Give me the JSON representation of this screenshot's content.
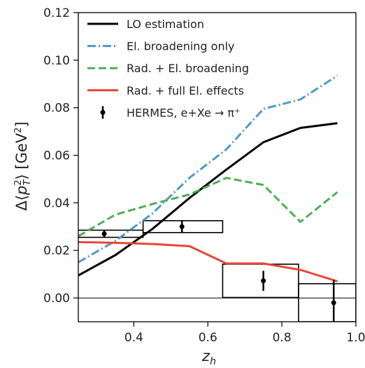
{
  "chart_data": {
    "type": "line",
    "xlabel": "z_h",
    "ylabel": "Δ⟨p_T^2⟩ [GeV^2]",
    "xlim": [
      0.25,
      1.0
    ],
    "ylim": [
      -0.01,
      0.12
    ],
    "x_ticks": [
      "0.4",
      "0.6",
      "0.8",
      "1.0"
    ],
    "y_ticks": [
      "0.00",
      "0.02",
      "0.04",
      "0.06",
      "0.08",
      "0.10",
      "0.12"
    ],
    "grid": false,
    "legend_position": "top-left",
    "series": [
      {
        "name": "LO estimation",
        "color": "#000000",
        "style": "solid",
        "x": [
          0.25,
          0.35,
          0.45,
          0.55,
          0.65,
          0.75,
          0.85,
          0.95
        ],
        "y": [
          0.0095,
          0.018,
          0.029,
          0.042,
          0.054,
          0.0655,
          0.0715,
          0.0735
        ]
      },
      {
        "name": "El. broadening only",
        "color": "#4c9ac7",
        "style": "dashdot",
        "x": [
          0.25,
          0.35,
          0.45,
          0.55,
          0.65,
          0.75,
          0.85,
          0.95
        ],
        "y": [
          0.015,
          0.024,
          0.0355,
          0.0505,
          0.0625,
          0.0795,
          0.0835,
          0.0935
        ]
      },
      {
        "name": "Rad. + El. broadening",
        "color": "#4daf55",
        "style": "dashed",
        "x": [
          0.25,
          0.35,
          0.45,
          0.55,
          0.65,
          0.75,
          0.85,
          0.95
        ],
        "y": [
          0.026,
          0.035,
          0.0395,
          0.0435,
          0.0505,
          0.0475,
          0.032,
          0.0445
        ]
      },
      {
        "name": "Rad. + full El. effects",
        "color": "#e8463a",
        "style": "solid",
        "x": [
          0.25,
          0.35,
          0.45,
          0.55,
          0.65,
          0.75,
          0.85,
          0.95
        ],
        "y": [
          0.0235,
          0.0232,
          0.0227,
          0.0218,
          0.0145,
          0.0145,
          0.0118,
          0.007
        ]
      }
    ],
    "data_points": {
      "name": "HERMES, e+Xe → π⁺",
      "color": "#000000",
      "points": [
        {
          "x": 0.32,
          "y": 0.027,
          "yerr": 0.0015,
          "xmin": 0.2,
          "xmax": 0.425,
          "sys": 0.0015
        },
        {
          "x": 0.53,
          "y": 0.03,
          "yerr": 0.0025,
          "xmin": 0.425,
          "xmax": 0.64,
          "sys": 0.0025
        },
        {
          "x": 0.75,
          "y": 0.0072,
          "yerr": 0.0042,
          "xmin": 0.64,
          "xmax": 0.845,
          "sys": 0.007
        },
        {
          "x": 0.94,
          "y": -0.002,
          "yerr": 0.0095,
          "xmin": 0.845,
          "xmax": 1.0,
          "sys": 0.008
        }
      ]
    }
  }
}
